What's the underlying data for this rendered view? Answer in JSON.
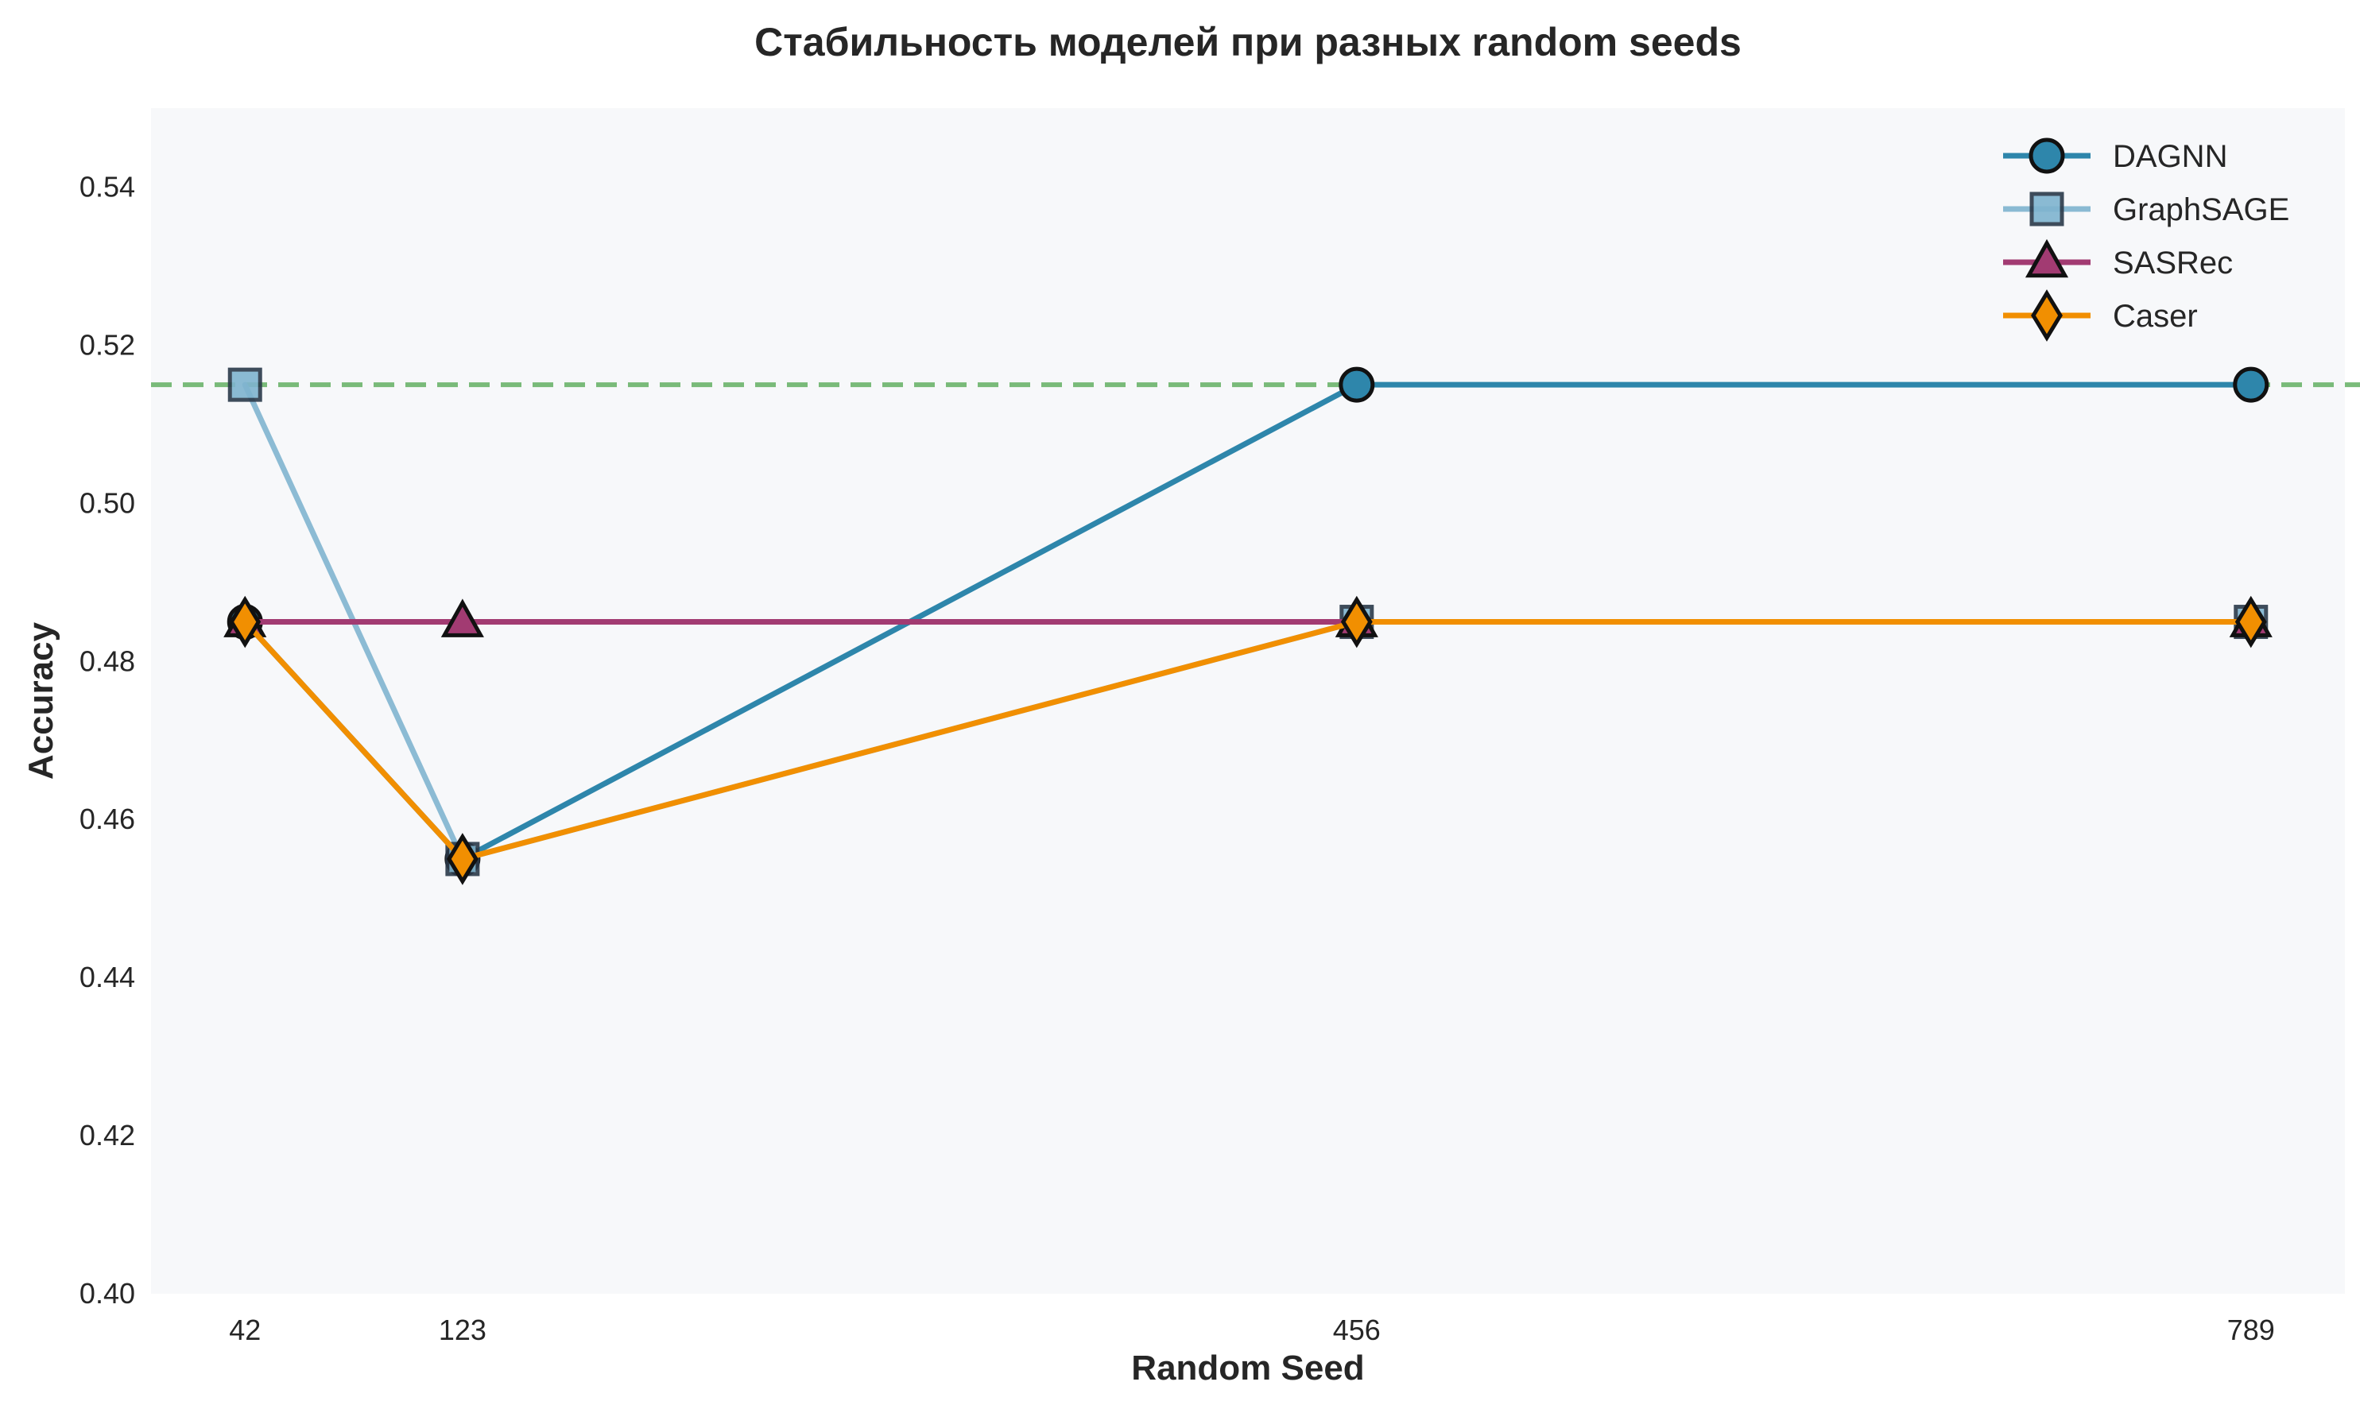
{
  "chart_data": {
    "type": "line",
    "title": "Стабильность моделей при разных random seeds",
    "xlabel": "Random Seed",
    "ylabel": "Accuracy",
    "x": [
      42,
      123,
      456,
      789
    ],
    "xlim": [
      7,
      824
    ],
    "ylim": [
      0.4,
      0.55
    ],
    "yticks": [
      "0.40",
      "0.42",
      "0.44",
      "0.46",
      "0.48",
      "0.50",
      "0.52",
      "0.54"
    ],
    "xticks": [
      "42",
      "123",
      "456",
      "789"
    ],
    "grid": false,
    "legend_position": "top-right",
    "reference_line": {
      "y": 0.515,
      "style": "dashed",
      "color": "#6cb46c"
    },
    "series": [
      {
        "name": "DAGNN",
        "values": [
          0.485,
          0.455,
          0.515,
          0.515
        ],
        "color": "#2e86ab",
        "marker": "circle",
        "opacity": 1.0
      },
      {
        "name": "GraphSAGE",
        "values": [
          0.515,
          0.455,
          0.485,
          0.485
        ],
        "color": "#7fb4cf",
        "marker": "square",
        "opacity": 0.9
      },
      {
        "name": "SASRec",
        "values": [
          0.485,
          0.485,
          0.485,
          0.485
        ],
        "color": "#a23b72",
        "marker": "triangle",
        "opacity": 1.0
      },
      {
        "name": "Caser",
        "values": [
          0.485,
          0.455,
          0.485,
          0.485
        ],
        "color": "#f18f01",
        "marker": "diamond",
        "opacity": 1.0
      }
    ]
  }
}
